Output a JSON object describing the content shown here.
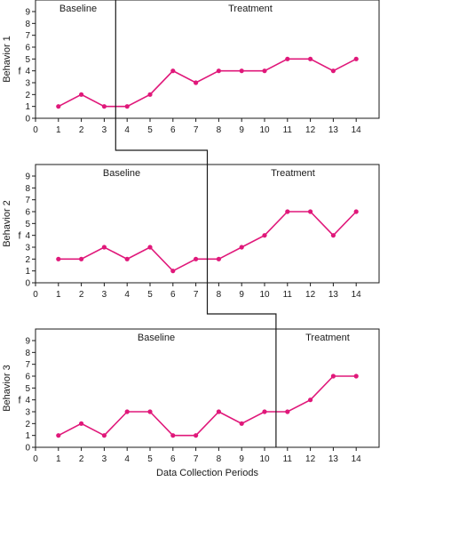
{
  "chart_data": [
    {
      "type": "line",
      "ylabel": "Behavior 1",
      "ylabel_f": "f",
      "phases": [
        {
          "label": "Baseline",
          "range": [
            0,
            3.5
          ]
        },
        {
          "label": "Treatment",
          "range": [
            3.5,
            15
          ]
        }
      ],
      "phase_change_after_x": 3.5,
      "x": [
        1,
        2,
        3,
        4,
        5,
        6,
        7,
        8,
        9,
        10,
        11,
        12,
        13,
        14
      ],
      "values": [
        1,
        2,
        1,
        1,
        2,
        4,
        3,
        4,
        4,
        4,
        5,
        5,
        4,
        5
      ],
      "xlim": [
        0,
        15
      ],
      "ylim": [
        0,
        9
      ],
      "x_ticks": [
        "0",
        "1",
        "2",
        "3",
        "4",
        "5",
        "6",
        "7",
        "8",
        "9",
        "10",
        "11",
        "12",
        "13",
        "14"
      ],
      "y_ticks": [
        "0",
        "1",
        "2",
        "3",
        "4",
        "5",
        "6",
        "7",
        "8",
        "9"
      ],
      "grid": false
    },
    {
      "type": "line",
      "ylabel": "Behavior 2",
      "ylabel_f": "f",
      "phases": [
        {
          "label": "Baseline",
          "range": [
            0,
            7.5
          ]
        },
        {
          "label": "Treatment",
          "range": [
            7.5,
            15
          ]
        }
      ],
      "phase_change_after_x": 7.5,
      "x": [
        1,
        2,
        3,
        4,
        5,
        6,
        7,
        8,
        9,
        10,
        11,
        12,
        13,
        14
      ],
      "values": [
        2,
        2,
        3,
        2,
        3,
        1,
        2,
        2,
        3,
        4,
        6,
        6,
        4,
        6
      ],
      "xlim": [
        0,
        15
      ],
      "ylim": [
        0,
        9
      ],
      "x_ticks": [
        "0",
        "1",
        "2",
        "3",
        "4",
        "5",
        "6",
        "7",
        "8",
        "9",
        "10",
        "11",
        "12",
        "13",
        "14"
      ],
      "y_ticks": [
        "0",
        "1",
        "2",
        "3",
        "4",
        "5",
        "6",
        "7",
        "8",
        "9"
      ],
      "grid": false
    },
    {
      "type": "line",
      "ylabel": "Behavior 3",
      "ylabel_f": "f",
      "xlabel": "Data Collection Periods",
      "phases": [
        {
          "label": "Baseline",
          "range": [
            0,
            10.5
          ]
        },
        {
          "label": "Treatment",
          "range": [
            10.5,
            15
          ]
        }
      ],
      "phase_change_after_x": 10.5,
      "x": [
        1,
        2,
        3,
        4,
        5,
        6,
        7,
        8,
        9,
        10,
        11,
        12,
        13,
        14
      ],
      "values": [
        1,
        2,
        1,
        3,
        3,
        1,
        1,
        3,
        2,
        3,
        3,
        4,
        6,
        6
      ],
      "xlim": [
        0,
        15
      ],
      "ylim": [
        0,
        9
      ],
      "x_ticks": [
        "0",
        "1",
        "2",
        "3",
        "4",
        "5",
        "6",
        "7",
        "8",
        "9",
        "10",
        "11",
        "12",
        "13",
        "14"
      ],
      "y_ticks": [
        "0",
        "1",
        "2",
        "3",
        "4",
        "5",
        "6",
        "7",
        "8",
        "9"
      ],
      "grid": false
    }
  ],
  "colors": {
    "series": "#e0187a",
    "axis": "#1a1a1a"
  }
}
